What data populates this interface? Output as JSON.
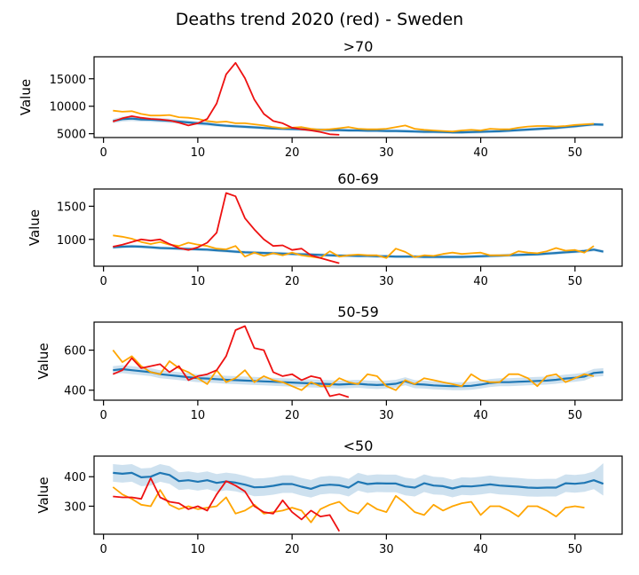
{
  "figure": {
    "title": "Deaths trend 2020 (red) - Sweden"
  },
  "colors": {
    "mean": "#1f77b4",
    "band": "#1f77b4",
    "prev": "#ffa500",
    "y2020": "#ee1111",
    "axis": "#000000"
  },
  "chart_data": [
    {
      "type": "line",
      "title": ">70",
      "xlabel": "",
      "ylabel": "Value",
      "xlim": [
        -1,
        55
      ],
      "ylim": [
        4300,
        19000
      ],
      "xticks": [
        0,
        10,
        20,
        30,
        40,
        50
      ],
      "yticks": [
        5000,
        10000,
        15000
      ],
      "series": [
        {
          "key": "mean",
          "x_start": 1,
          "values": [
            7300,
            7650,
            7750,
            7600,
            7550,
            7450,
            7350,
            7200,
            7050,
            6900,
            6800,
            6600,
            6450,
            6350,
            6250,
            6150,
            6050,
            5950,
            5900,
            5850,
            5800,
            5750,
            5700,
            5650,
            5650,
            5600,
            5600,
            5550,
            5550,
            5500,
            5500,
            5450,
            5400,
            5350,
            5350,
            5300,
            5250,
            5250,
            5300,
            5350,
            5400,
            5450,
            5550,
            5650,
            5750,
            5850,
            5950,
            6050,
            6200,
            6350,
            6550,
            6700,
            6650
          ],
          "lower": [
            6900,
            7200,
            7300,
            7200,
            7150,
            7050,
            6950,
            6850,
            6700,
            6550,
            6450,
            6300,
            6150,
            6050,
            5950,
            5850,
            5750,
            5650,
            5600,
            5550,
            5500,
            5450,
            5400,
            5350,
            5350,
            5300,
            5300,
            5250,
            5250,
            5200,
            5200,
            5150,
            5100,
            5050,
            5050,
            5000,
            4950,
            4950,
            5000,
            5050,
            5100,
            5150,
            5250,
            5350,
            5450,
            5550,
            5650,
            5750,
            5900,
            6050,
            6250,
            6400,
            6350
          ],
          "upper": [
            7700,
            8100,
            8200,
            8000,
            7950,
            7850,
            7750,
            7550,
            7400,
            7250,
            7150,
            6900,
            6750,
            6650,
            6550,
            6450,
            6350,
            6250,
            6200,
            6150,
            6100,
            6050,
            6000,
            5950,
            5950,
            5900,
            5900,
            5850,
            5850,
            5800,
            5800,
            5750,
            5700,
            5650,
            5650,
            5600,
            5550,
            5550,
            5600,
            5650,
            5700,
            5750,
            5850,
            5950,
            6050,
            6150,
            6250,
            6350,
            6500,
            6650,
            6850,
            7000,
            6950
          ]
        },
        {
          "key": "prev",
          "x_start": 1,
          "values": [
            9200,
            9000,
            9100,
            8600,
            8300,
            8300,
            8400,
            8000,
            7900,
            7700,
            7300,
            7100,
            7200,
            6900,
            6900,
            6700,
            6500,
            6200,
            6000,
            6100,
            6200,
            5900,
            5700,
            5800,
            6000,
            6200,
            5900,
            5800,
            5800,
            5900,
            6200,
            6500,
            5900,
            5700,
            5600,
            5500,
            5400,
            5600,
            5700,
            5600,
            5900,
            5800,
            5800,
            6100,
            6300,
            6400,
            6400,
            6300,
            6400,
            6600,
            6700,
            6800
          ]
        },
        {
          "key": "y2020",
          "x_start": 1,
          "values": [
            7200,
            7800,
            8200,
            7900,
            7700,
            7600,
            7400,
            7000,
            6500,
            6900,
            7700,
            10500,
            15800,
            17900,
            15100,
            11200,
            8600,
            7300,
            6900,
            6100,
            5800,
            5600,
            5300,
            4900,
            4800
          ]
        }
      ]
    },
    {
      "type": "line",
      "title": "60-69",
      "xlabel": "",
      "ylabel": "Value",
      "xlim": [
        -1,
        55
      ],
      "ylim": [
        595,
        1760
      ],
      "xticks": [
        0,
        10,
        20,
        30,
        40,
        50
      ],
      "yticks": [
        1000,
        1500
      ],
      "series": [
        {
          "key": "mean",
          "x_start": 1,
          "values": [
            880,
            890,
            895,
            890,
            880,
            870,
            865,
            860,
            855,
            850,
            845,
            835,
            825,
            815,
            805,
            800,
            795,
            790,
            785,
            780,
            775,
            770,
            765,
            760,
            755,
            755,
            750,
            750,
            745,
            745,
            740,
            740,
            740,
            735,
            735,
            735,
            735,
            735,
            740,
            745,
            750,
            755,
            760,
            765,
            770,
            775,
            785,
            795,
            805,
            815,
            825,
            845,
            815
          ],
          "lower": [
            855,
            865,
            870,
            865,
            855,
            845,
            840,
            835,
            830,
            825,
            820,
            810,
            800,
            790,
            780,
            775,
            770,
            765,
            760,
            755,
            750,
            745,
            740,
            735,
            730,
            730,
            725,
            725,
            720,
            720,
            715,
            715,
            715,
            710,
            710,
            710,
            710,
            710,
            715,
            720,
            725,
            730,
            735,
            740,
            745,
            750,
            760,
            770,
            780,
            790,
            800,
            820,
            790
          ],
          "upper": [
            905,
            915,
            920,
            915,
            905,
            895,
            890,
            885,
            880,
            875,
            870,
            860,
            850,
            840,
            830,
            825,
            820,
            815,
            810,
            805,
            800,
            795,
            790,
            785,
            780,
            780,
            775,
            775,
            770,
            770,
            765,
            765,
            765,
            760,
            760,
            760,
            760,
            760,
            765,
            770,
            775,
            780,
            785,
            790,
            795,
            800,
            810,
            820,
            830,
            840,
            850,
            870,
            840
          ]
        },
        {
          "key": "prev",
          "x_start": 1,
          "values": [
            1060,
            1040,
            1010,
            960,
            930,
            960,
            920,
            900,
            950,
            920,
            900,
            860,
            850,
            900,
            740,
            800,
            750,
            790,
            760,
            800,
            760,
            740,
            720,
            820,
            740,
            760,
            770,
            760,
            760,
            720,
            860,
            810,
            730,
            760,
            750,
            780,
            800,
            780,
            790,
            800,
            760,
            760,
            760,
            820,
            800,
            790,
            820,
            870,
            830,
            840,
            800,
            900
          ]
        },
        {
          "key": "y2020",
          "x_start": 1,
          "values": [
            890,
            920,
            960,
            1000,
            980,
            1000,
            930,
            870,
            840,
            880,
            950,
            1100,
            1700,
            1650,
            1320,
            1150,
            1000,
            900,
            910,
            840,
            860,
            760,
            720,
            680,
            640
          ]
        }
      ]
    },
    {
      "type": "line",
      "title": "50-59",
      "xlabel": "",
      "ylabel": "Value",
      "xlim": [
        -1,
        55
      ],
      "ylim": [
        350,
        740
      ],
      "xticks": [
        0,
        10,
        20,
        30,
        40,
        50
      ],
      "yticks": [
        400,
        600
      ],
      "series": [
        {
          "key": "mean",
          "x_start": 1,
          "values": [
            500,
            505,
            500,
            495,
            490,
            480,
            475,
            470,
            465,
            460,
            458,
            455,
            452,
            450,
            448,
            446,
            444,
            442,
            440,
            438,
            436,
            434,
            432,
            430,
            428,
            430,
            432,
            428,
            426,
            428,
            432,
            445,
            430,
            428,
            424,
            422,
            420,
            420,
            422,
            428,
            436,
            440,
            440,
            442,
            444,
            446,
            448,
            452,
            458,
            462,
            468,
            486,
            490
          ],
          "lower": [
            480,
            485,
            480,
            475,
            470,
            460,
            455,
            450,
            445,
            440,
            438,
            435,
            432,
            430,
            428,
            426,
            424,
            422,
            420,
            418,
            416,
            414,
            412,
            410,
            408,
            410,
            412,
            408,
            406,
            408,
            412,
            425,
            410,
            408,
            404,
            402,
            400,
            400,
            402,
            408,
            416,
            420,
            420,
            422,
            424,
            426,
            428,
            432,
            438,
            442,
            448,
            466,
            470
          ],
          "upper": [
            520,
            525,
            520,
            515,
            510,
            500,
            495,
            490,
            485,
            480,
            478,
            475,
            472,
            470,
            468,
            466,
            464,
            462,
            460,
            458,
            456,
            454,
            452,
            450,
            448,
            450,
            452,
            448,
            446,
            448,
            452,
            465,
            450,
            448,
            444,
            442,
            440,
            440,
            442,
            448,
            456,
            460,
            460,
            462,
            464,
            466,
            468,
            472,
            478,
            482,
            488,
            506,
            510
          ]
        },
        {
          "key": "prev",
          "x_start": 1,
          "values": [
            600,
            540,
            570,
            520,
            490,
            480,
            545,
            510,
            490,
            460,
            430,
            500,
            440,
            460,
            500,
            440,
            470,
            450,
            440,
            420,
            400,
            440,
            420,
            420,
            460,
            440,
            430,
            480,
            470,
            420,
            400,
            450,
            430,
            460,
            450,
            440,
            430,
            420,
            480,
            450,
            440,
            440,
            480,
            480,
            460,
            420,
            470,
            480,
            440,
            460,
            480,
            470
          ]
        },
        {
          "key": "y2020",
          "x_start": 1,
          "values": [
            480,
            500,
            560,
            510,
            520,
            530,
            490,
            520,
            450,
            470,
            480,
            500,
            570,
            700,
            720,
            610,
            600,
            490,
            470,
            480,
            450,
            470,
            460,
            370,
            380,
            365
          ]
        }
      ]
    },
    {
      "type": "line",
      "title": "<50",
      "xlabel": "",
      "ylabel": "Value",
      "xlim": [
        -1,
        55
      ],
      "ylim": [
        205,
        470
      ],
      "xticks": [
        0,
        10,
        20,
        30,
        40,
        50
      ],
      "yticks": [
        300,
        400
      ],
      "series": [
        {
          "key": "mean",
          "x_start": 1,
          "values": [
            413,
            410,
            413,
            398,
            400,
            413,
            406,
            385,
            388,
            383,
            388,
            379,
            384,
            380,
            373,
            364,
            365,
            369,
            375,
            375,
            366,
            359,
            370,
            373,
            371,
            363,
            383,
            375,
            378,
            377,
            377,
            367,
            363,
            378,
            370,
            368,
            360,
            368,
            367,
            370,
            374,
            370,
            368,
            366,
            363,
            362,
            363,
            363,
            378,
            376,
            379,
            388,
            376
          ],
          "lower": [
            383,
            380,
            383,
            368,
            370,
            383,
            376,
            355,
            358,
            353,
            358,
            349,
            354,
            350,
            343,
            334,
            335,
            339,
            345,
            345,
            336,
            329,
            340,
            343,
            341,
            333,
            353,
            345,
            348,
            347,
            347,
            337,
            333,
            348,
            340,
            338,
            330,
            338,
            337,
            340,
            344,
            340,
            338,
            336,
            333,
            332,
            333,
            333,
            348,
            346,
            349,
            358,
            336
          ],
          "upper": [
            443,
            440,
            443,
            428,
            430,
            443,
            436,
            415,
            418,
            413,
            418,
            409,
            414,
            410,
            403,
            394,
            395,
            399,
            405,
            405,
            396,
            389,
            400,
            403,
            401,
            393,
            413,
            405,
            408,
            407,
            407,
            397,
            393,
            408,
            400,
            398,
            390,
            398,
            397,
            400,
            404,
            400,
            398,
            396,
            393,
            392,
            393,
            393,
            408,
            406,
            409,
            418,
            446
          ]
        },
        {
          "key": "prev",
          "x_start": 1,
          "values": [
            365,
            340,
            325,
            305,
            300,
            355,
            305,
            290,
            300,
            290,
            295,
            300,
            330,
            275,
            285,
            305,
            275,
            280,
            285,
            295,
            285,
            245,
            290,
            305,
            315,
            285,
            275,
            310,
            290,
            280,
            335,
            310,
            280,
            270,
            305,
            285,
            300,
            310,
            315,
            270,
            300,
            300,
            285,
            265,
            300,
            300,
            285,
            265,
            295,
            300,
            295
          ]
        },
        {
          "key": "y2020",
          "x_start": 1,
          "values": [
            333,
            330,
            330,
            325,
            395,
            330,
            315,
            310,
            290,
            300,
            285,
            340,
            385,
            370,
            350,
            300,
            280,
            275,
            320,
            280,
            255,
            285,
            265,
            270,
            215
          ]
        }
      ]
    }
  ]
}
